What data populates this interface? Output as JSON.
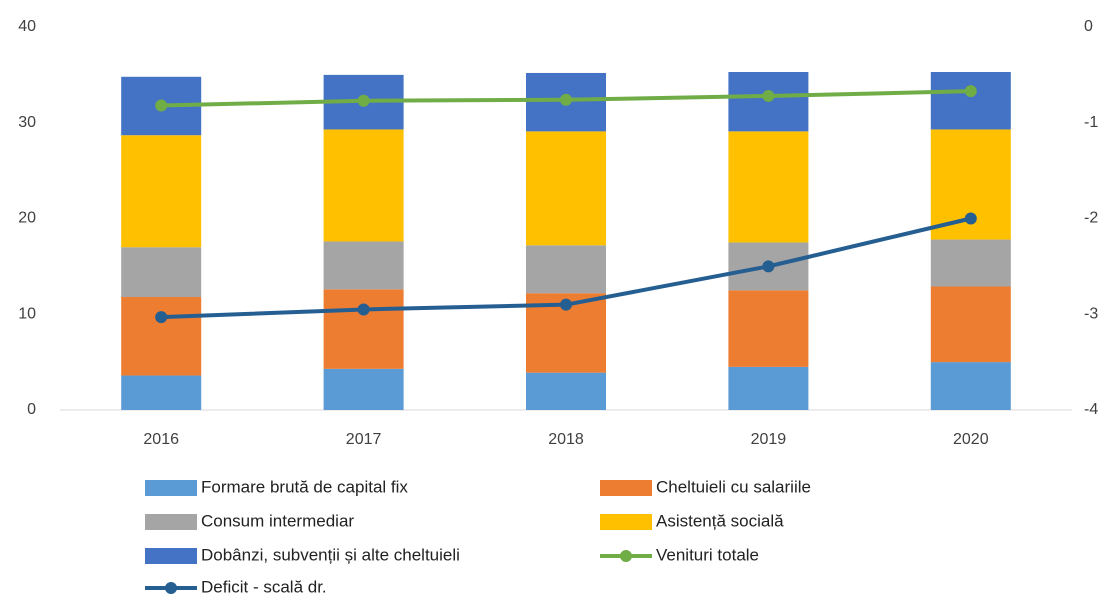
{
  "chart_data": {
    "type": "bar",
    "categories": [
      "2016",
      "2017",
      "2018",
      "2019",
      "2020"
    ],
    "ylim": [
      0,
      40
    ],
    "yticks": [
      0,
      10,
      20,
      30,
      40
    ],
    "y2lim": [
      -4,
      0
    ],
    "y2ticks": [
      -4,
      -3,
      -2,
      -1,
      0
    ],
    "grid": false,
    "series": [
      {
        "name": "Formare brută de capital fix",
        "type": "bar",
        "color": "#5b9bd5",
        "values": [
          3.6,
          4.3,
          3.9,
          4.5,
          5.0
        ]
      },
      {
        "name": "Cheltuieli cu salariile",
        "type": "bar",
        "color": "#ed7d31",
        "values": [
          8.2,
          8.3,
          8.3,
          8.0,
          7.9
        ]
      },
      {
        "name": "Consum intermediar",
        "type": "bar",
        "color": "#a5a5a5",
        "values": [
          5.2,
          5.0,
          5.0,
          5.0,
          4.9
        ]
      },
      {
        "name": "Asistență socială",
        "type": "bar",
        "color": "#ffc000",
        "values": [
          11.7,
          11.7,
          11.9,
          11.6,
          11.5
        ]
      },
      {
        "name": "Dobânzi, subvenții și alte cheltuieli",
        "type": "bar",
        "color": "#4472c4",
        "values": [
          6.1,
          5.7,
          6.1,
          6.2,
          6.0
        ]
      },
      {
        "name": "Venituri totale",
        "type": "line",
        "color": "#70ad47",
        "values": [
          31.8,
          32.3,
          32.4,
          32.8,
          33.3
        ]
      },
      {
        "name": "Deficit - scală dr.",
        "type": "line",
        "axis": "y2",
        "color": "#255e91",
        "values": [
          -3.03,
          -2.95,
          -2.9,
          -2.5,
          -2.0
        ]
      }
    ]
  }
}
